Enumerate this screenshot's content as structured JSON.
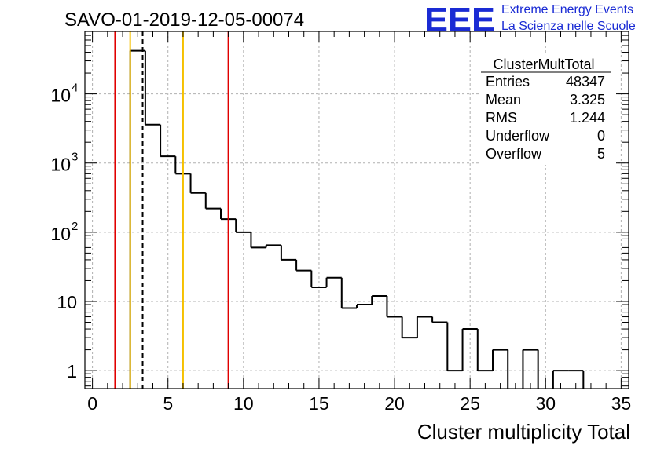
{
  "header": {
    "title": "SAVO-01-2019-12-05-00074"
  },
  "logo": {
    "mark": "EEE",
    "line1": "Extreme Energy Events",
    "line2": "La Scienza nelle Scuole",
    "color": "#1a2bd4"
  },
  "stats": {
    "name": "ClusterMultTotal",
    "rows": [
      {
        "label": "Entries",
        "value": "48347"
      },
      {
        "label": "Mean",
        "value": "3.325"
      },
      {
        "label": "RMS",
        "value": "1.244"
      },
      {
        "label": "Underflow",
        "value": "0"
      },
      {
        "label": "Overflow",
        "value": "5"
      }
    ]
  },
  "chart_data": {
    "type": "histogram",
    "title": "SAVO-01-2019-12-05-00074",
    "xlabel": "Cluster multiplicity Total",
    "ylabel": "",
    "xlim": [
      -0.5,
      35.5
    ],
    "ylim": [
      0.55,
      80000
    ],
    "yscale": "log",
    "grid": true,
    "x_ticks": [
      0,
      5,
      10,
      15,
      20,
      25,
      30,
      35
    ],
    "y_ticks": [
      {
        "value": 1,
        "label": "1"
      },
      {
        "value": 10,
        "label": "10"
      },
      {
        "value": 100,
        "label": "10",
        "exp": "2"
      },
      {
        "value": 1000,
        "label": "10",
        "exp": "3"
      },
      {
        "value": 10000,
        "label": "10",
        "exp": "4"
      }
    ],
    "bin_width": 1,
    "bin_low_edges": [
      2.5,
      3.5,
      4.5,
      5.5,
      6.5,
      7.5,
      8.5,
      9.5,
      10.5,
      11.5,
      12.5,
      13.5,
      14.5,
      15.5,
      16.5,
      17.5,
      18.5,
      19.5,
      20.5,
      21.5,
      22.5,
      23.5,
      24.5,
      25.5,
      26.5,
      27.5,
      28.5,
      29.5,
      30.5,
      31.5
    ],
    "counts": [
      42000,
      3600,
      1250,
      700,
      370,
      220,
      155,
      100,
      60,
      65,
      40,
      28,
      16,
      22,
      8,
      9,
      12,
      6,
      3,
      6,
      5,
      1,
      4,
      1,
      2,
      0,
      2,
      0,
      1,
      1
    ],
    "vlines": [
      {
        "x": 1.5,
        "color": "#e00000",
        "style": "solid"
      },
      {
        "x": 2.5,
        "color": "#f5c000",
        "style": "solid"
      },
      {
        "x": 3.325,
        "color": "#000000",
        "style": "dashed"
      },
      {
        "x": 6.0,
        "color": "#f5c000",
        "style": "solid"
      },
      {
        "x": 9.0,
        "color": "#e00000",
        "style": "solid"
      }
    ]
  }
}
